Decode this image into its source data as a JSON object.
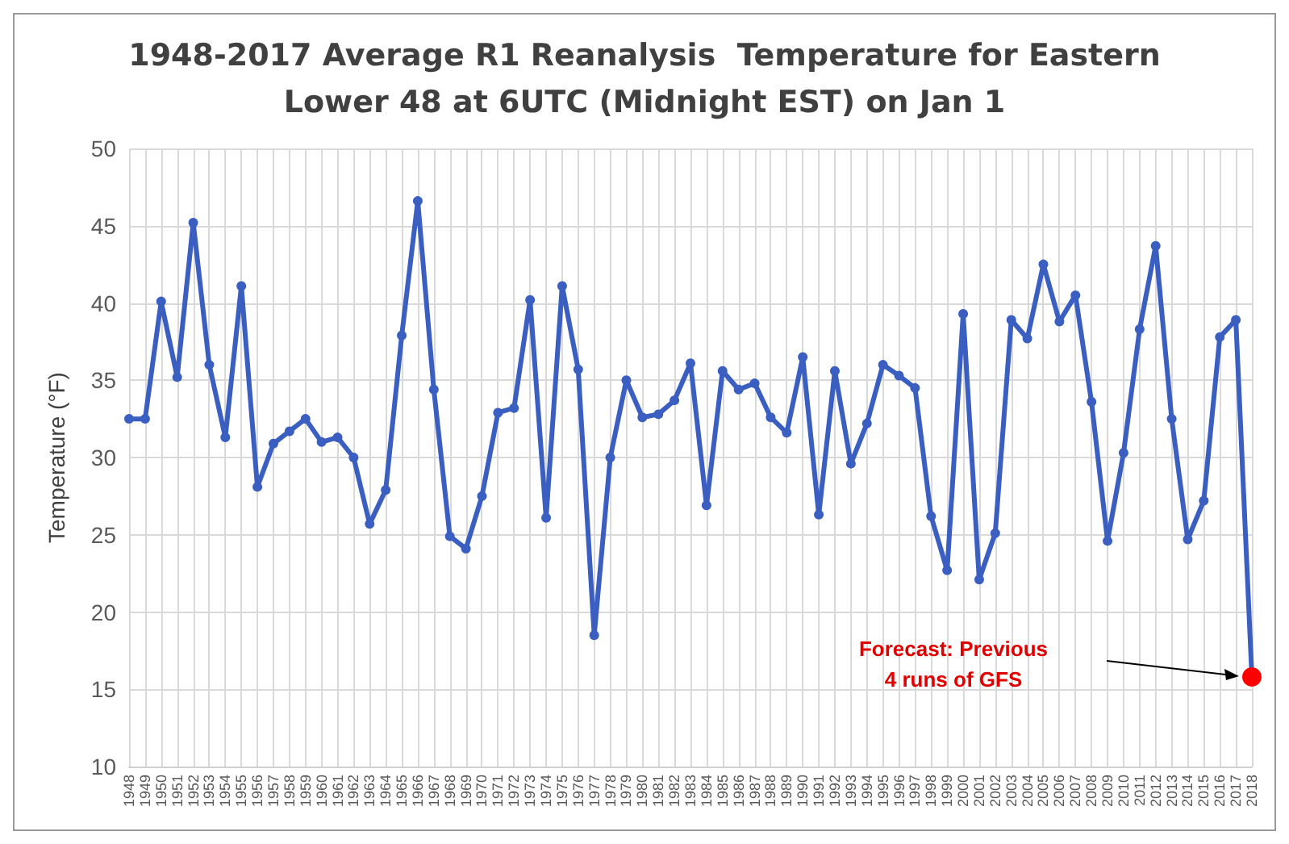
{
  "chart_data": {
    "type": "line",
    "title": "1948-2017 Average R1 Reanalysis  Temperature for Eastern\nLower 48 at 6UTC (Midnight EST) on Jan 1",
    "ylabel": "Temperature (°F)",
    "categories": [
      "1948",
      "1949",
      "1950",
      "1951",
      "1952",
      "1953",
      "1954",
      "1955",
      "1956",
      "1957",
      "1958",
      "1959",
      "1960",
      "1961",
      "1962",
      "1963",
      "1964",
      "1965",
      "1966",
      "1967",
      "1968",
      "1969",
      "1970",
      "1971",
      "1972",
      "1973",
      "1974",
      "1975",
      "1976",
      "1977",
      "1978",
      "1979",
      "1980",
      "1981",
      "1982",
      "1983",
      "1984",
      "1985",
      "1986",
      "1987",
      "1988",
      "1989",
      "1990",
      "1991",
      "1992",
      "1993",
      "1994",
      "1995",
      "1996",
      "1997",
      "1998",
      "1999",
      "2000",
      "2001",
      "2002",
      "2003",
      "2004",
      "2005",
      "2006",
      "2007",
      "2008",
      "2009",
      "2010",
      "2011",
      "2012",
      "2013",
      "2014",
      "2015",
      "2016",
      "2017",
      "2018"
    ],
    "series": [
      {
        "color": "#3a5fc0",
        "values": [
          32.5,
          32.5,
          40.1,
          35.2,
          45.2,
          36.0,
          31.3,
          41.1,
          28.1,
          30.9,
          31.7,
          32.5,
          31.0,
          31.3,
          30.0,
          25.7,
          27.9,
          37.9,
          46.6,
          34.4,
          24.9,
          24.1,
          27.5,
          32.9,
          33.2,
          40.2,
          26.1,
          41.1,
          35.7,
          18.5,
          30.0,
          35.0,
          32.6,
          32.8,
          33.7,
          36.1,
          26.9,
          35.6,
          34.4,
          34.8,
          32.6,
          31.6,
          36.5,
          26.3,
          35.6,
          29.6,
          32.2,
          36.0,
          35.3,
          34.5,
          26.2,
          22.7,
          39.3,
          22.1,
          25.1,
          38.9,
          37.7,
          42.5,
          38.8,
          40.5,
          33.6,
          24.6,
          30.3,
          38.3,
          43.7,
          32.5,
          24.7,
          27.2,
          37.8,
          38.9,
          15.8
        ]
      },
      {
        "type": "scatter",
        "color": "#ff0000",
        "values": [
          null,
          null,
          null,
          null,
          null,
          null,
          null,
          null,
          null,
          null,
          null,
          null,
          null,
          null,
          null,
          null,
          null,
          null,
          null,
          null,
          null,
          null,
          null,
          null,
          null,
          null,
          null,
          null,
          null,
          null,
          null,
          null,
          null,
          null,
          null,
          null,
          null,
          null,
          null,
          null,
          null,
          null,
          null,
          null,
          null,
          null,
          null,
          null,
          null,
          null,
          null,
          null,
          null,
          null,
          null,
          null,
          null,
          null,
          null,
          null,
          null,
          null,
          null,
          null,
          null,
          null,
          null,
          null,
          null,
          null,
          15.8
        ]
      }
    ],
    "annotations": [
      "Forecast: Previous\n4 runs of GFS"
    ],
    "ylim": [
      10,
      50
    ],
    "yticks": [
      10,
      15,
      20,
      25,
      30,
      35,
      40,
      45,
      50
    ],
    "grid": true,
    "marker": "circle",
    "line_style": "solid"
  }
}
